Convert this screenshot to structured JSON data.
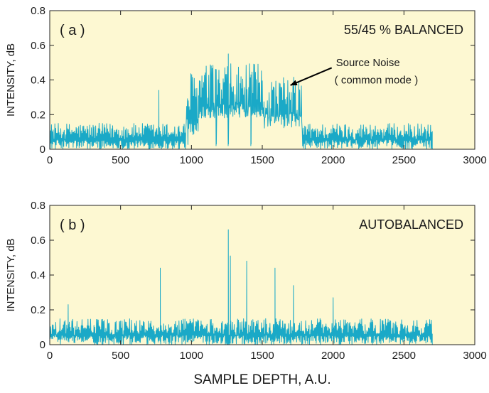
{
  "chart_data": [
    {
      "type": "line",
      "panel_label": "( a )",
      "title": "55/45 % BALANCED",
      "xlabel": "",
      "ylabel": "INTENSITY, dB",
      "xlim": [
        0,
        3000
      ],
      "ylim": [
        0,
        0.8
      ],
      "xticks": [
        0,
        500,
        1000,
        1500,
        2000,
        2500,
        3000
      ],
      "yticks": [
        0,
        0.2,
        0.4,
        0.6,
        0.8
      ],
      "grid": false,
      "colors": {
        "plot_background": "#fdf8d2",
        "line": "#1aa9c7",
        "annotation": "#000000"
      },
      "annotation": {
        "line1": "Source Noise",
        "line2": "( common mode )",
        "arrow_to": [
          1700,
          0.37
        ]
      },
      "series": [
        {
          "x_start": 0,
          "x_end": 2700,
          "segments": [
            {
              "x": [
                0,
                960
              ],
              "floor": 0.0,
              "level": 0.1
            },
            {
              "x": [
                960,
                1050
              ],
              "floor": 0.02,
              "level": 0.3
            },
            {
              "x": [
                1050,
                1500
              ],
              "floor": 0.18,
              "level": 0.33
            },
            {
              "x": [
                1500,
                1780
              ],
              "floor": 0.12,
              "level": 0.28
            },
            {
              "x": [
                1780,
                2700
              ],
              "floor": 0.0,
              "level": 0.1
            }
          ],
          "spikes": [
            {
              "x": 770,
              "y": 0.34
            },
            {
              "x": 1260,
              "y": 0.55
            },
            {
              "x": 1175,
              "y": 0.46
            },
            {
              "x": 1420,
              "y": 0.43
            }
          ]
        }
      ]
    },
    {
      "type": "line",
      "panel_label": "( b )",
      "title": "AUTOBALANCED",
      "xlabel": "SAMPLE DEPTH, A.U.",
      "ylabel": "INTENSITY, dB",
      "xlim": [
        0,
        3000
      ],
      "ylim": [
        0,
        0.8
      ],
      "xticks": [
        0,
        500,
        1000,
        1500,
        2000,
        2500,
        3000
      ],
      "yticks": [
        0,
        0.2,
        0.4,
        0.6,
        0.8
      ],
      "grid": false,
      "colors": {
        "plot_background": "#fdf8d2",
        "line": "#1aa9c7"
      },
      "series": [
        {
          "x_start": 0,
          "x_end": 2700,
          "segments": [
            {
              "x": [
                0,
                2700
              ],
              "floor": 0.0,
              "level": 0.1
            }
          ],
          "spikes": [
            {
              "x": 780,
              "y": 0.44
            },
            {
              "x": 1260,
              "y": 0.66
            },
            {
              "x": 1275,
              "y": 0.51
            },
            {
              "x": 1390,
              "y": 0.48
            },
            {
              "x": 1590,
              "y": 0.44
            },
            {
              "x": 1720,
              "y": 0.34
            },
            {
              "x": 2000,
              "y": 0.27
            },
            {
              "x": 130,
              "y": 0.23
            }
          ]
        }
      ]
    }
  ]
}
